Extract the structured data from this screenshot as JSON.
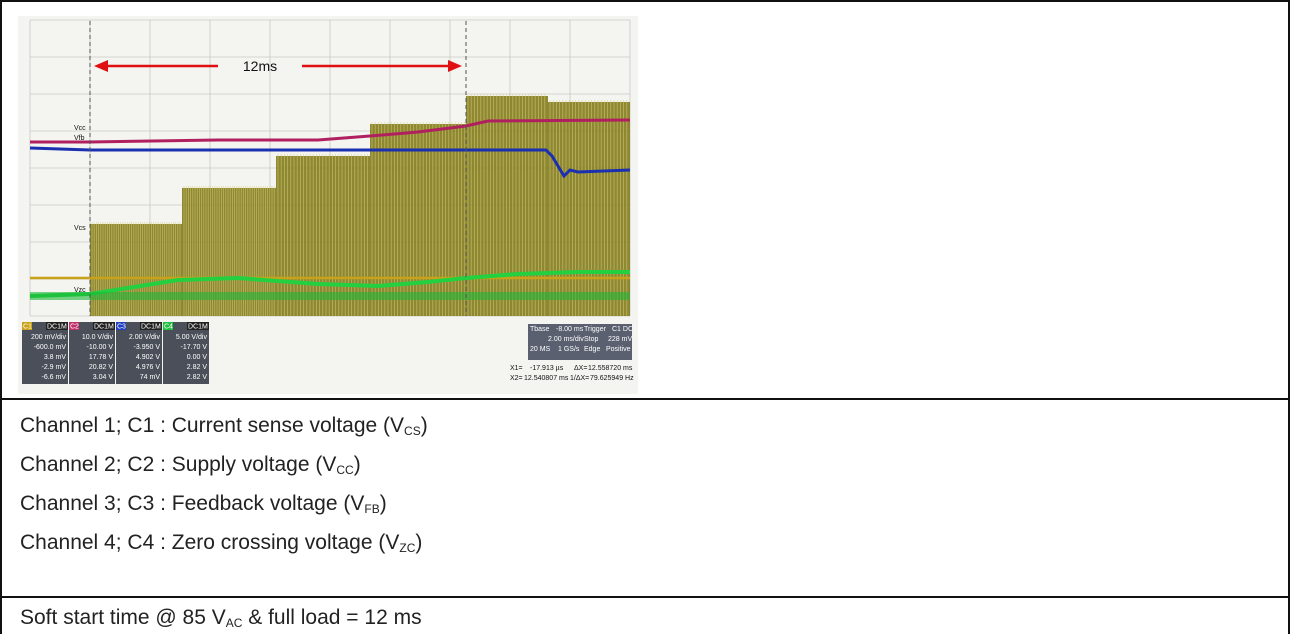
{
  "figure": {
    "annotation": "12ms",
    "scope": {
      "channel_boxes": [
        {
          "tag": "C1",
          "coupling": "DC1M",
          "scale": "200 mV/div",
          "offset": "-600.0 mV",
          "v1": "3.8 mV",
          "v2": "-2.9 mV",
          "delta": "-6.6 mV",
          "color": "#c8a21a"
        },
        {
          "tag": "C2",
          "coupling": "DC1M",
          "scale": "10.0 V/div",
          "offset": "-10.00 V",
          "v1": "17.78 V",
          "v2": "20.82 V",
          "delta": "3.04 V",
          "color": "#c0306a"
        },
        {
          "tag": "C3",
          "coupling": "DC1M",
          "scale": "2.00 V/div",
          "offset": "-3.950 V",
          "v1": "4.902 V",
          "v2": "4.976 V",
          "delta": "74 mV",
          "color": "#2040c0"
        },
        {
          "tag": "C4",
          "coupling": "DC1M",
          "scale": "5.00 V/div",
          "offset": "-17.70 V",
          "v1": "0.00 V",
          "v2": "2.82 V",
          "delta": "2.82 V",
          "color": "#20c040"
        }
      ],
      "timebase": {
        "label": "Tbase",
        "value": "-8.00 ms",
        "scale": "2.00 ms/div",
        "rate": "20 MS",
        "srate": "1 GS/s"
      },
      "trigger": {
        "label": "Trigger",
        "coupling": "C1 DC",
        "mode": "Stop",
        "level": "228 mV",
        "type": "Edge",
        "slope": "Positive"
      },
      "cursors": {
        "x1_label": "X1=",
        "x1": "-17.913 µs",
        "dx_label": "ΔX=",
        "dx": "12.558720 ms",
        "x2_label": "X2=",
        "x2": "12.540807 ms",
        "inv_label": "1/ΔX=",
        "inv": "79.625949 Hz"
      },
      "trace_labels": {
        "vcc": "Vcc",
        "vfb": "Vfb",
        "vcs": "Vcs",
        "vzc": "Vzc"
      }
    }
  },
  "channels": {
    "c1": {
      "prefix": "Channel 1; C1 : Current sense voltage (V",
      "sub": "CS",
      "suffix": ")"
    },
    "c2": {
      "prefix": "Channel 2; C2 : Supply voltage (V",
      "sub": "CC",
      "suffix": ")"
    },
    "c3": {
      "prefix": "Channel 3; C3 : Feedback voltage (V",
      "sub": "FB",
      "suffix": ")"
    },
    "c4": {
      "prefix": "Channel 4; C4 : Zero crossing voltage (V",
      "sub": "ZC",
      "suffix": ")"
    }
  },
  "summary": {
    "prefix": "Soft start time @ 85 V",
    "sub": "AC",
    "suffix": " & full load = 12 ms"
  }
}
